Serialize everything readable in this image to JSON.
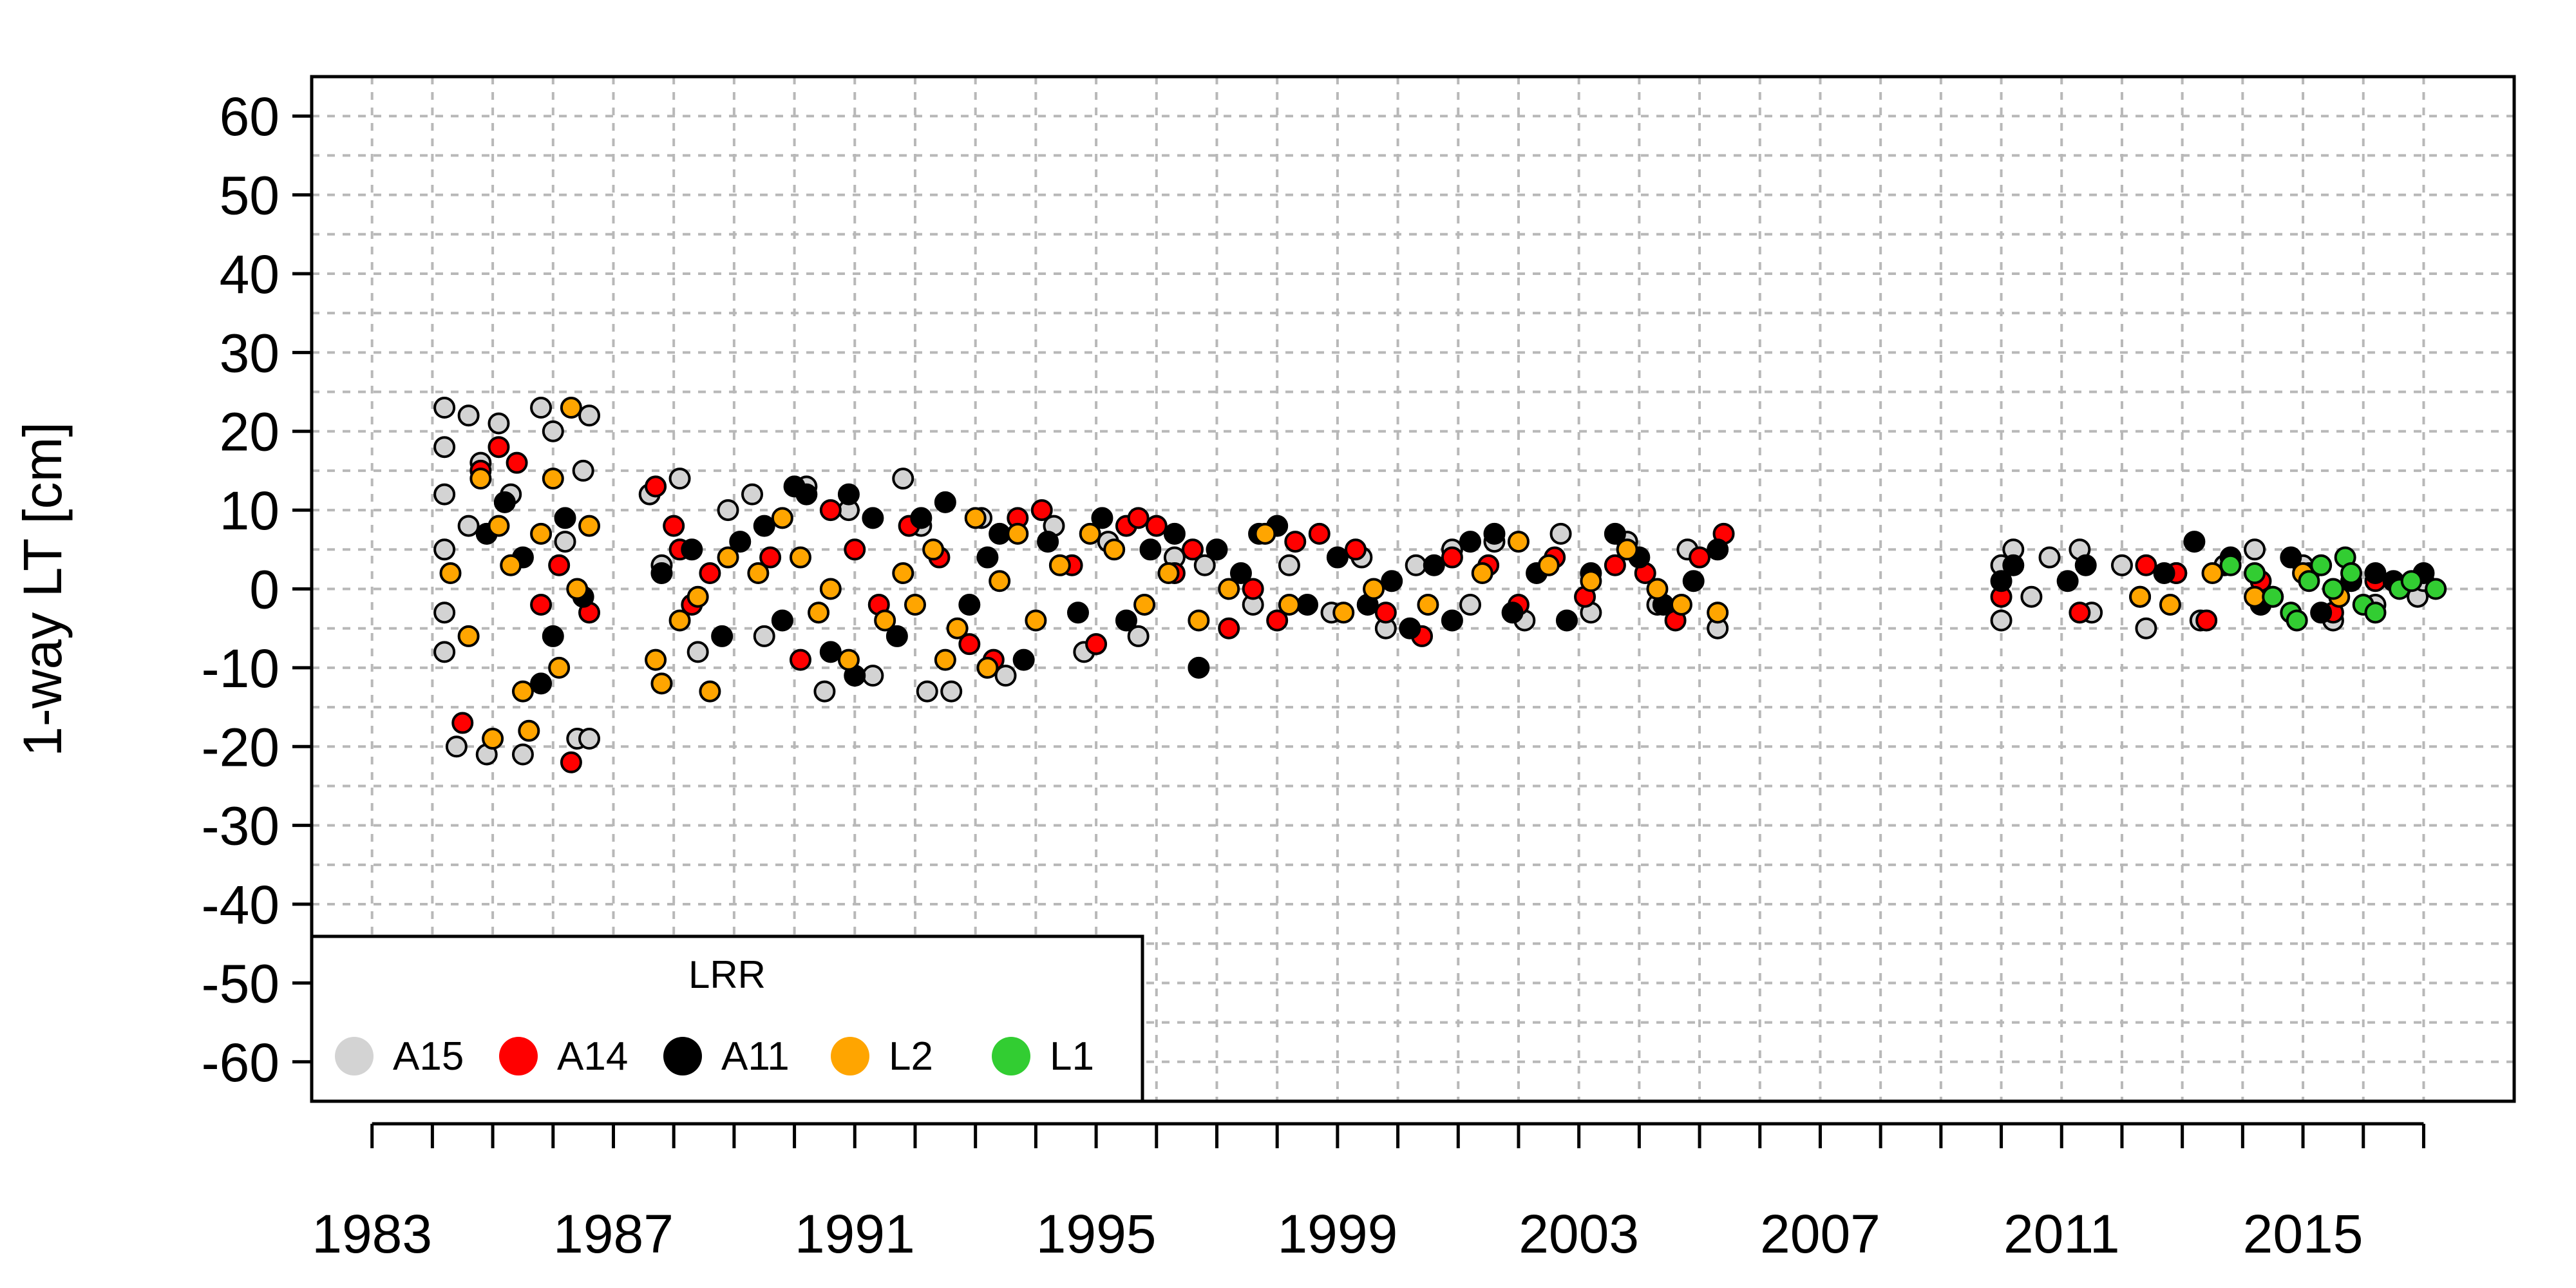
{
  "chart_data": {
    "type": "scatter",
    "title": "",
    "xlabel": "",
    "ylabel": "1-way LT [cm]",
    "xlim": [
      1982,
      2018.5
    ],
    "ylim": [
      -65,
      65
    ],
    "grid": true,
    "legend_placement": "bottom-left",
    "x_ticks": [
      1983,
      1984,
      1985,
      1986,
      1987,
      1988,
      1989,
      1990,
      1991,
      1992,
      1993,
      1994,
      1995,
      1996,
      1997,
      1998,
      1999,
      2000,
      2001,
      2002,
      2003,
      2004,
      2005,
      2006,
      2007,
      2008,
      2009,
      2010,
      2011,
      2012,
      2013,
      2014,
      2015,
      2016,
      2017
    ],
    "x_tick_labels": [
      {
        "value": 1983,
        "label": "1983"
      },
      {
        "value": 1987,
        "label": "1987"
      },
      {
        "value": 1991,
        "label": "1991"
      },
      {
        "value": 1995,
        "label": "1995"
      },
      {
        "value": 1999,
        "label": "1999"
      },
      {
        "value": 2003,
        "label": "2003"
      },
      {
        "value": 2007,
        "label": "2007"
      },
      {
        "value": 2011,
        "label": "2011"
      },
      {
        "value": 2015,
        "label": "2015"
      }
    ],
    "y_ticks": [
      60,
      50,
      40,
      30,
      20,
      10,
      0,
      -10,
      -20,
      -30,
      -40,
      -50,
      -60
    ],
    "y_tick_labels": [
      "60",
      "50",
      "40",
      "30",
      "20",
      "10",
      "0",
      "-10",
      "-20",
      "-30",
      "-40",
      "-50",
      "-60"
    ],
    "legend": {
      "title": "LRR",
      "entries": [
        {
          "label": "A15",
          "color": "#d3d3d3"
        },
        {
          "label": "A14",
          "color": "#ff0000"
        },
        {
          "label": "A11",
          "color": "#000000"
        },
        {
          "label": "L2",
          "color": "#ffa500"
        },
        {
          "label": "L1",
          "color": "#32cd32"
        }
      ]
    },
    "series": [
      {
        "name": "A15",
        "color": "#d3d3d3",
        "points": [
          [
            1984.2,
            23
          ],
          [
            1984.2,
            18
          ],
          [
            1984.2,
            12
          ],
          [
            1984.2,
            5
          ],
          [
            1984.2,
            -3
          ],
          [
            1984.2,
            -8
          ],
          [
            1984.4,
            -20
          ],
          [
            1984.6,
            22
          ],
          [
            1984.6,
            8
          ],
          [
            1984.8,
            16
          ],
          [
            1984.9,
            -21
          ],
          [
            1985.1,
            21
          ],
          [
            1985.3,
            12
          ],
          [
            1985.5,
            -21
          ],
          [
            1985.8,
            23
          ],
          [
            1986.0,
            20
          ],
          [
            1986.2,
            6
          ],
          [
            1986.4,
            -19
          ],
          [
            1986.5,
            15
          ],
          [
            1986.6,
            22
          ],
          [
            1986.6,
            -19
          ],
          [
            1987.6,
            12
          ],
          [
            1987.8,
            3
          ],
          [
            1988.1,
            14
          ],
          [
            1988.4,
            -8
          ],
          [
            1988.9,
            10
          ],
          [
            1989.3,
            12
          ],
          [
            1989.5,
            -6
          ],
          [
            1990.2,
            13
          ],
          [
            1990.5,
            -13
          ],
          [
            1990.9,
            10
          ],
          [
            1991.3,
            -11
          ],
          [
            1991.8,
            14
          ],
          [
            1992.1,
            8
          ],
          [
            1992.2,
            -13
          ],
          [
            1992.6,
            -13
          ],
          [
            1993.1,
            9
          ],
          [
            1993.5,
            -11
          ],
          [
            1994.3,
            8
          ],
          [
            1994.8,
            -8
          ],
          [
            1995.2,
            6
          ],
          [
            1995.7,
            -6
          ],
          [
            1996.3,
            4
          ],
          [
            1996.8,
            3
          ],
          [
            1997.6,
            -2
          ],
          [
            1998.2,
            3
          ],
          [
            1998.9,
            -3
          ],
          [
            1999.4,
            4
          ],
          [
            1999.8,
            -5
          ],
          [
            2000.3,
            3
          ],
          [
            2000.9,
            5
          ],
          [
            2001.2,
            -2
          ],
          [
            2001.6,
            6
          ],
          [
            2002.1,
            -4
          ],
          [
            2002.7,
            7
          ],
          [
            2003.2,
            -3
          ],
          [
            2003.8,
            6
          ],
          [
            2004.3,
            -2
          ],
          [
            2004.8,
            5
          ],
          [
            2005.3,
            -5
          ],
          [
            2010.0,
            -4
          ],
          [
            2010.0,
            3
          ],
          [
            2010.2,
            5
          ],
          [
            2010.5,
            -1
          ],
          [
            2010.8,
            4
          ],
          [
            2011.3,
            5
          ],
          [
            2011.5,
            -3
          ],
          [
            2012.0,
            3
          ],
          [
            2012.4,
            -5
          ],
          [
            2012.9,
            2
          ],
          [
            2013.3,
            -4
          ],
          [
            2013.7,
            3
          ],
          [
            2014.2,
            5
          ],
          [
            2014.5,
            -1
          ],
          [
            2015.0,
            3
          ],
          [
            2015.5,
            -4
          ],
          [
            2016.2,
            -2
          ],
          [
            2016.9,
            -1
          ],
          [
            2017.0,
            1
          ]
        ]
      },
      {
        "name": "A14",
        "color": "#ff0000",
        "points": [
          [
            1984.5,
            -17
          ],
          [
            1984.8,
            15
          ],
          [
            1985.1,
            18
          ],
          [
            1985.4,
            16
          ],
          [
            1985.8,
            -2
          ],
          [
            1986.1,
            3
          ],
          [
            1986.3,
            -22
          ],
          [
            1986.6,
            -3
          ],
          [
            1987.7,
            13
          ],
          [
            1988.0,
            8
          ],
          [
            1988.1,
            5
          ],
          [
            1988.3,
            -2
          ],
          [
            1988.6,
            2
          ],
          [
            1989.6,
            4
          ],
          [
            1990.1,
            -9
          ],
          [
            1990.6,
            10
          ],
          [
            1991.0,
            5
          ],
          [
            1991.4,
            -2
          ],
          [
            1991.9,
            8
          ],
          [
            1992.4,
            4
          ],
          [
            1992.9,
            -7
          ],
          [
            1993.3,
            -9
          ],
          [
            1993.7,
            9
          ],
          [
            1994.1,
            10
          ],
          [
            1994.6,
            3
          ],
          [
            1995.0,
            -7
          ],
          [
            1995.5,
            8
          ],
          [
            1995.7,
            9
          ],
          [
            1996.0,
            8
          ],
          [
            1996.3,
            2
          ],
          [
            1996.6,
            5
          ],
          [
            1997.2,
            -5
          ],
          [
            1997.6,
            0
          ],
          [
            1998.0,
            -4
          ],
          [
            1998.3,
            6
          ],
          [
            1998.7,
            7
          ],
          [
            1999.3,
            5
          ],
          [
            1999.8,
            -3
          ],
          [
            2000.4,
            -6
          ],
          [
            2000.9,
            4
          ],
          [
            2001.5,
            3
          ],
          [
            2002.0,
            -2
          ],
          [
            2002.6,
            4
          ],
          [
            2003.1,
            -1
          ],
          [
            2003.6,
            3
          ],
          [
            2004.1,
            2
          ],
          [
            2004.6,
            -4
          ],
          [
            2005.0,
            4
          ],
          [
            2005.4,
            7
          ],
          [
            2010.0,
            -1
          ],
          [
            2011.3,
            -3
          ],
          [
            2012.4,
            3
          ],
          [
            2012.9,
            2
          ],
          [
            2013.4,
            -4
          ],
          [
            2014.3,
            1
          ],
          [
            2015.1,
            2
          ],
          [
            2015.5,
            -3
          ],
          [
            2016.2,
            1
          ]
        ]
      },
      {
        "name": "A11",
        "color": "#000000",
        "points": [
          [
            1984.9,
            7
          ],
          [
            1985.2,
            11
          ],
          [
            1985.5,
            4
          ],
          [
            1985.8,
            -12
          ],
          [
            1986.0,
            -6
          ],
          [
            1986.2,
            9
          ],
          [
            1986.5,
            -1
          ],
          [
            1987.8,
            2
          ],
          [
            1988.3,
            5
          ],
          [
            1988.8,
            -6
          ],
          [
            1989.1,
            6
          ],
          [
            1989.5,
            8
          ],
          [
            1989.8,
            -4
          ],
          [
            1990.0,
            13
          ],
          [
            1990.2,
            12
          ],
          [
            1990.6,
            -8
          ],
          [
            1990.9,
            12
          ],
          [
            1991.0,
            -11
          ],
          [
            1991.3,
            9
          ],
          [
            1991.7,
            -6
          ],
          [
            1992.1,
            9
          ],
          [
            1992.5,
            11
          ],
          [
            1992.9,
            -2
          ],
          [
            1993.2,
            4
          ],
          [
            1993.4,
            7
          ],
          [
            1993.8,
            -9
          ],
          [
            1994.2,
            6
          ],
          [
            1994.7,
            -3
          ],
          [
            1995.1,
            9
          ],
          [
            1995.5,
            -4
          ],
          [
            1995.9,
            5
          ],
          [
            1996.3,
            7
          ],
          [
            1996.7,
            -10
          ],
          [
            1997.0,
            5
          ],
          [
            1997.4,
            2
          ],
          [
            1997.7,
            7
          ],
          [
            1998.0,
            8
          ],
          [
            1998.5,
            -2
          ],
          [
            1999.0,
            4
          ],
          [
            1999.5,
            -2
          ],
          [
            1999.9,
            1
          ],
          [
            2000.2,
            -5
          ],
          [
            2000.6,
            3
          ],
          [
            2000.9,
            -4
          ],
          [
            2001.2,
            6
          ],
          [
            2001.6,
            7
          ],
          [
            2001.9,
            -3
          ],
          [
            2002.3,
            2
          ],
          [
            2002.8,
            -4
          ],
          [
            2003.2,
            2
          ],
          [
            2003.6,
            7
          ],
          [
            2004.0,
            4
          ],
          [
            2004.4,
            -2
          ],
          [
            2004.9,
            1
          ],
          [
            2005.3,
            5
          ],
          [
            2010.0,
            1
          ],
          [
            2010.2,
            3
          ],
          [
            2011.1,
            1
          ],
          [
            2011.4,
            3
          ],
          [
            2012.3,
            -1
          ],
          [
            2012.7,
            2
          ],
          [
            2013.2,
            6
          ],
          [
            2013.8,
            4
          ],
          [
            2014.3,
            -2
          ],
          [
            2014.8,
            4
          ],
          [
            2015.3,
            -3
          ],
          [
            2015.8,
            1
          ],
          [
            2016.2,
            2
          ],
          [
            2016.5,
            1
          ],
          [
            2017.0,
            2
          ]
        ]
      },
      {
        "name": "L2",
        "color": "#ffa500",
        "points": [
          [
            1984.3,
            2
          ],
          [
            1984.6,
            -6
          ],
          [
            1984.8,
            14
          ],
          [
            1985.0,
            -19
          ],
          [
            1985.1,
            8
          ],
          [
            1985.3,
            3
          ],
          [
            1985.5,
            -13
          ],
          [
            1985.6,
            -18
          ],
          [
            1985.8,
            7
          ],
          [
            1986.0,
            14
          ],
          [
            1986.1,
            -10
          ],
          [
            1986.3,
            23
          ],
          [
            1986.4,
            0
          ],
          [
            1986.6,
            8
          ],
          [
            1987.7,
            -9
          ],
          [
            1987.8,
            -12
          ],
          [
            1988.1,
            -4
          ],
          [
            1988.4,
            -1
          ],
          [
            1988.6,
            -13
          ],
          [
            1988.9,
            4
          ],
          [
            1989.4,
            2
          ],
          [
            1989.8,
            9
          ],
          [
            1990.1,
            4
          ],
          [
            1990.4,
            -3
          ],
          [
            1990.6,
            0
          ],
          [
            1990.9,
            -9
          ],
          [
            1991.5,
            -4
          ],
          [
            1991.8,
            2
          ],
          [
            1992.0,
            -2
          ],
          [
            1992.3,
            5
          ],
          [
            1992.5,
            -9
          ],
          [
            1992.7,
            -5
          ],
          [
            1993.0,
            9
          ],
          [
            1993.2,
            -10
          ],
          [
            1993.4,
            1
          ],
          [
            1993.7,
            7
          ],
          [
            1994.0,
            -4
          ],
          [
            1994.4,
            3
          ],
          [
            1994.9,
            7
          ],
          [
            1995.3,
            5
          ],
          [
            1995.8,
            -2
          ],
          [
            1996.2,
            2
          ],
          [
            1996.7,
            -4
          ],
          [
            1997.2,
            0
          ],
          [
            1997.8,
            7
          ],
          [
            1998.2,
            -2
          ],
          [
            1999.1,
            -3
          ],
          [
            1999.6,
            0
          ],
          [
            2000.5,
            -2
          ],
          [
            2001.4,
            2
          ],
          [
            2002.0,
            6
          ],
          [
            2002.5,
            3
          ],
          [
            2003.2,
            1
          ],
          [
            2003.8,
            5
          ],
          [
            2004.3,
            0
          ],
          [
            2004.7,
            -2
          ],
          [
            2005.3,
            -3
          ],
          [
            2012.3,
            -1
          ],
          [
            2012.8,
            -2
          ],
          [
            2013.5,
            2
          ],
          [
            2014.2,
            -1
          ],
          [
            2015.0,
            2
          ],
          [
            2015.6,
            -1
          ]
        ]
      },
      {
        "name": "L1",
        "color": "#32cd32",
        "points": [
          [
            2013.8,
            3
          ],
          [
            2014.2,
            2
          ],
          [
            2014.5,
            -1
          ],
          [
            2014.8,
            -3
          ],
          [
            2014.9,
            -4
          ],
          [
            2015.1,
            1
          ],
          [
            2015.3,
            3
          ],
          [
            2015.5,
            0
          ],
          [
            2015.7,
            4
          ],
          [
            2015.8,
            2
          ],
          [
            2016.0,
            -2
          ],
          [
            2016.2,
            -3
          ],
          [
            2016.6,
            0
          ],
          [
            2016.8,
            1
          ],
          [
            2017.2,
            0
          ]
        ]
      }
    ]
  }
}
